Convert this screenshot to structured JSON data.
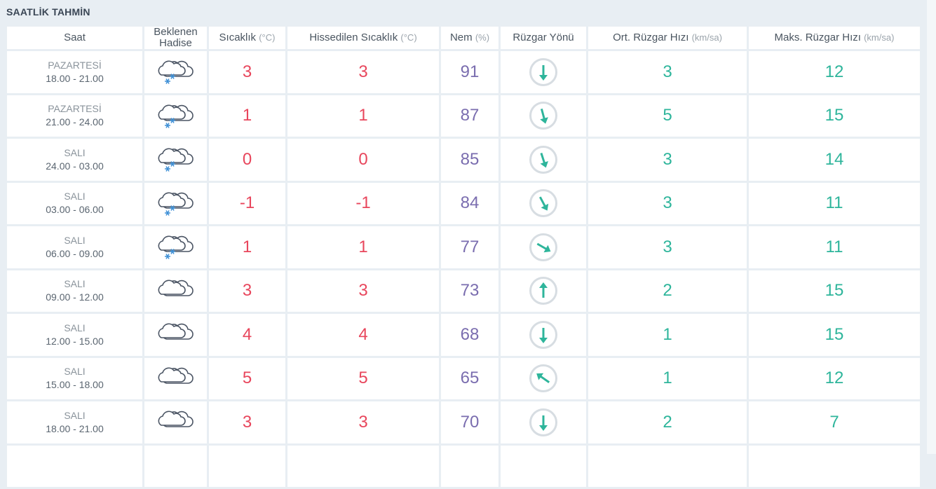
{
  "title": "SAATLİK TAHMİN",
  "headers": {
    "saat": "Saat",
    "hadise": "Beklenen Hadise",
    "sicaklik": "Sıcaklık",
    "sicaklik_unit": "(°C)",
    "hissedilen": "Hissedilen Sıcaklık",
    "hissedilen_unit": "(°C)",
    "nem": "Nem",
    "nem_unit": "(%)",
    "yon": "Rüzgar Yönü",
    "ort": "Ort. Rüzgar Hızı",
    "ort_unit": "(km/sa)",
    "maks": "Maks. Rüzgar Hızı",
    "maks_unit": "(km/sa)"
  },
  "colors": {
    "temp": "#e8465c",
    "humidity": "#7a6daf",
    "wind": "#2eb59b"
  },
  "rows": [
    {
      "day": "PAZARTESİ",
      "time": "18.00 - 21.00",
      "icon": "cloud-snow-icon",
      "temp": "3",
      "feels": "3",
      "humidity": "91",
      "wind_dir_deg": 180,
      "avg": "3",
      "max": "12"
    },
    {
      "day": "PAZARTESİ",
      "time": "21.00 - 24.00",
      "icon": "cloud-snow-icon",
      "temp": "1",
      "feels": "1",
      "humidity": "87",
      "wind_dir_deg": 165,
      "avg": "5",
      "max": "15"
    },
    {
      "day": "SALI",
      "time": "24.00 - 03.00",
      "icon": "cloud-snow-icon",
      "temp": "0",
      "feels": "0",
      "humidity": "85",
      "wind_dir_deg": 162,
      "avg": "3",
      "max": "14"
    },
    {
      "day": "SALI",
      "time": "03.00 - 06.00",
      "icon": "cloud-snow-icon",
      "temp": "-1",
      "feels": "-1",
      "humidity": "84",
      "wind_dir_deg": 152,
      "avg": "3",
      "max": "11"
    },
    {
      "day": "SALI",
      "time": "06.00 - 09.00",
      "icon": "cloud-snow-icon",
      "temp": "1",
      "feels": "1",
      "humidity": "77",
      "wind_dir_deg": 120,
      "avg": "3",
      "max": "11"
    },
    {
      "day": "SALI",
      "time": "09.00 - 12.00",
      "icon": "cloud-icon",
      "temp": "3",
      "feels": "3",
      "humidity": "73",
      "wind_dir_deg": 0,
      "avg": "2",
      "max": "15"
    },
    {
      "day": "SALI",
      "time": "12.00 - 15.00",
      "icon": "cloud-icon",
      "temp": "4",
      "feels": "4",
      "humidity": "68",
      "wind_dir_deg": 180,
      "avg": "1",
      "max": "15"
    },
    {
      "day": "SALI",
      "time": "15.00 - 18.00",
      "icon": "cloud-icon",
      "temp": "5",
      "feels": "5",
      "humidity": "65",
      "wind_dir_deg": 305,
      "avg": "1",
      "max": "12"
    },
    {
      "day": "SALI",
      "time": "18.00 - 21.00",
      "icon": "cloud-icon",
      "temp": "3",
      "feels": "3",
      "humidity": "70",
      "wind_dir_deg": 180,
      "avg": "2",
      "max": "7"
    }
  ]
}
